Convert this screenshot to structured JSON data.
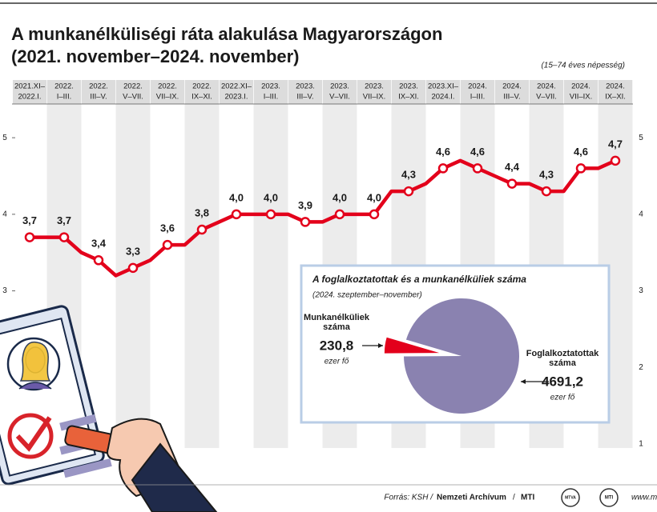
{
  "title_lines": [
    "A munkanélküliségi ráta alakulása Magyarországon",
    "(2021. november–2024. november)"
  ],
  "subtitle": "(15–74 éves népesség)",
  "source": {
    "prefix": "Forrás: KSH /",
    "archive": "Nemzeti Archívum",
    "sep": "/",
    "agency": "MTI",
    "logo1": "MTVA",
    "logo2": "MTI",
    "url": "www.mti"
  },
  "chart_data": [
    {
      "type": "line",
      "categories": [
        [
          "2021.XI–",
          "2022.I."
        ],
        null,
        [
          "2022.",
          "I–III."
        ],
        null,
        [
          "2022.",
          "III–V."
        ],
        null,
        [
          "2022.",
          "V–VII."
        ],
        null,
        [
          "2022.",
          "VII–IX."
        ],
        null,
        [
          "2022.",
          "IX–XI."
        ],
        null,
        [
          "2022.XI–",
          "2023.I."
        ],
        null,
        [
          "2023.",
          "I–III."
        ],
        null,
        [
          "2023.",
          "III–V."
        ],
        null,
        [
          "2023.",
          "V–VII."
        ],
        null,
        [
          "2023.",
          "VII–IX."
        ],
        null,
        [
          "2023.",
          "IX–XI."
        ],
        null,
        [
          "2023.XI–",
          "2024.I."
        ],
        null,
        [
          "2024.",
          "I–III."
        ],
        null,
        [
          "2024.",
          "III–V."
        ],
        null,
        [
          "2024.",
          "V–VII."
        ],
        null,
        [
          "2024.",
          "VII–IX."
        ],
        null,
        [
          "2024.",
          "IX–XI."
        ]
      ],
      "values": [
        3.7,
        3.7,
        3.7,
        3.5,
        3.4,
        3.2,
        3.3,
        3.4,
        3.6,
        3.6,
        3.8,
        3.9,
        4.0,
        4.0,
        4.0,
        4.0,
        3.9,
        3.9,
        4.0,
        4.0,
        4.0,
        4.3,
        4.3,
        4.4,
        4.6,
        4.7,
        4.6,
        4.5,
        4.4,
        4.4,
        4.3,
        4.3,
        4.6,
        4.6,
        4.7
      ],
      "value_labels": [
        "3,7",
        null,
        "3,7",
        null,
        "3,4",
        null,
        "3,3",
        null,
        "3,6",
        null,
        "3,8",
        null,
        "4,0",
        null,
        "4,0",
        null,
        "3,9",
        null,
        "4,0",
        null,
        "4,0",
        null,
        "4,3",
        null,
        "4,6",
        null,
        "4,6",
        null,
        "4,4",
        null,
        "4,3",
        null,
        "4,6",
        null,
        "4,7"
      ],
      "color": "#e3001b",
      "ylim": [
        1,
        5.2
      ],
      "yticks": [
        1,
        2,
        3,
        4,
        5
      ]
    },
    {
      "type": "pie",
      "title": "A foglalkoztatottak és a munkanélküliek száma",
      "subtitle": "(2024. szeptember–november)",
      "categories": [
        [
          "Munkanélküliek",
          "száma"
        ],
        [
          "Foglalkoztatottak",
          "száma"
        ]
      ],
      "values": [
        230.8,
        4691.2
      ],
      "value_labels": [
        "230,8",
        "4691,2"
      ],
      "unit": "ezer fő",
      "colors": [
        "#e3001b",
        "#8a82b0"
      ]
    }
  ]
}
